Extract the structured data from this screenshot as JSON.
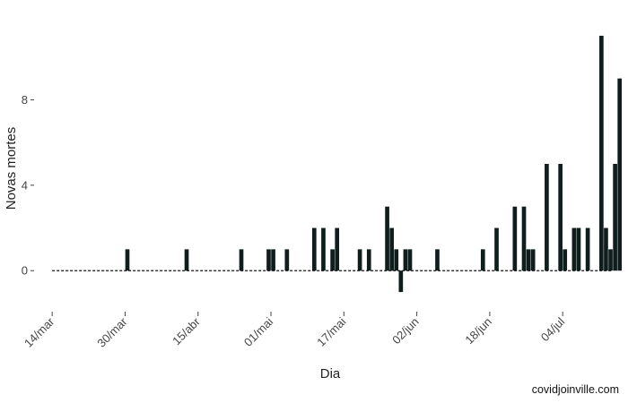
{
  "chart_data": {
    "type": "bar",
    "xlabel": "Dia",
    "ylabel": "Novas mortes",
    "x_start": "2020-03-14",
    "x_end": "2020-07-14",
    "xlim": [
      "2020-03-12",
      "2020-07-14"
    ],
    "ylim": [
      -1.5,
      11.5
    ],
    "y_ticks": [
      0,
      4,
      8
    ],
    "x_ticks": [
      {
        "date": "2020-03-14",
        "label": "14/mar"
      },
      {
        "date": "2020-03-30",
        "label": "30/mar"
      },
      {
        "date": "2020-04-15",
        "label": "15/abr"
      },
      {
        "date": "2020-05-01",
        "label": "01/mai"
      },
      {
        "date": "2020-05-17",
        "label": "17/mai"
      },
      {
        "date": "2020-06-02",
        "label": "02/jun"
      },
      {
        "date": "2020-06-18",
        "label": "18/jun"
      },
      {
        "date": "2020-07-04",
        "label": "04/jul"
      }
    ],
    "bar_color": "#0f1d1d",
    "zero_line": "dashed",
    "grid": false,
    "series": [
      {
        "points": [
          [
            "2020-03-30",
            1
          ],
          [
            "2020-04-12",
            1
          ],
          [
            "2020-04-24",
            1
          ],
          [
            "2020-04-30",
            1
          ],
          [
            "2020-05-01",
            1
          ],
          [
            "2020-05-04",
            1
          ],
          [
            "2020-05-10",
            2
          ],
          [
            "2020-05-12",
            2
          ],
          [
            "2020-05-14",
            1
          ],
          [
            "2020-05-15",
            2
          ],
          [
            "2020-05-20",
            1
          ],
          [
            "2020-05-22",
            1
          ],
          [
            "2020-05-26",
            3
          ],
          [
            "2020-05-27",
            2
          ],
          [
            "2020-05-28",
            1
          ],
          [
            "2020-05-29",
            -1
          ],
          [
            "2020-05-30",
            1
          ],
          [
            "2020-05-31",
            1
          ],
          [
            "2020-06-06",
            1
          ],
          [
            "2020-06-16",
            1
          ],
          [
            "2020-06-19",
            2
          ],
          [
            "2020-06-23",
            3
          ],
          [
            "2020-06-25",
            3
          ],
          [
            "2020-06-26",
            1
          ],
          [
            "2020-06-27",
            1
          ],
          [
            "2020-06-30",
            5
          ],
          [
            "2020-07-03",
            5
          ],
          [
            "2020-07-04",
            1
          ],
          [
            "2020-07-05",
            0
          ],
          [
            "2020-07-06",
            2
          ],
          [
            "2020-07-07",
            2
          ],
          [
            "2020-07-09",
            2
          ],
          [
            "2020-07-12",
            11
          ],
          [
            "2020-07-13",
            2
          ],
          [
            "2020-07-14",
            1
          ],
          [
            "2020-07-15",
            5
          ],
          [
            "2020-07-16",
            9
          ]
        ]
      }
    ]
  },
  "credit": "covidjoinville.com"
}
